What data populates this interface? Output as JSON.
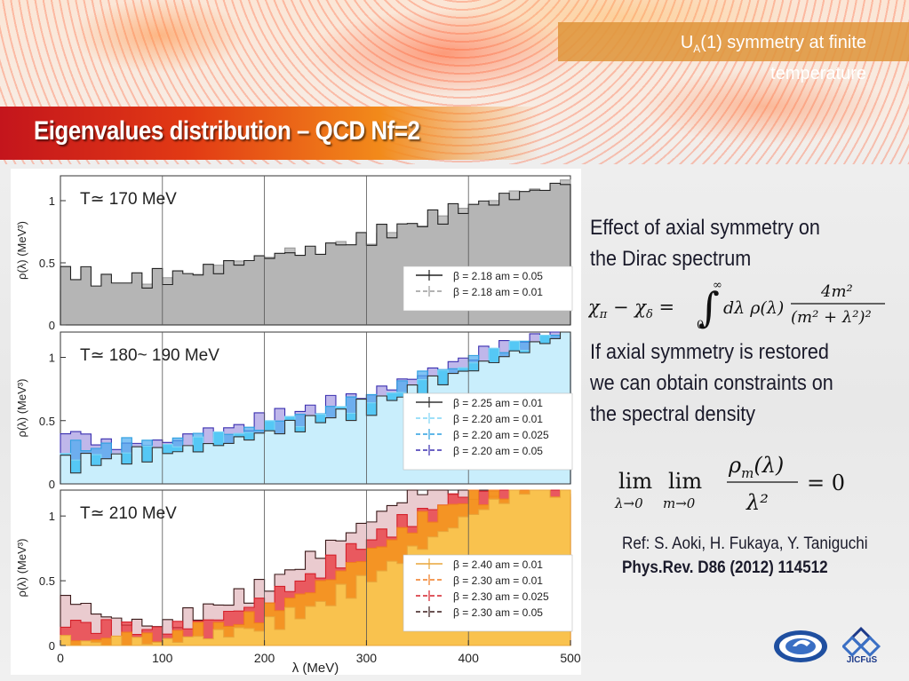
{
  "header": {
    "tag_line1": "U",
    "tag_sub": "A",
    "tag_line1_rest": "(1) symmetry at finite",
    "tag_line2": "temperature"
  },
  "title": "Eigenvalues distribution – QCD Nf=2",
  "text": {
    "p1_line1": "Effect of axial symmetry on",
    "p1_line2": "the Dirac spectrum",
    "p2_line1": "If axial symmetry is restored",
    "p2_line2": "we can obtain constraints on",
    "p2_line3": "the spectral density",
    "ref_line1": "Ref: S. Aoki, H. Fukaya, Y. Taniguchi",
    "ref_line2": "Phys.Rev. D86 (2012) 114512",
    "logo_text": "JICFuS"
  },
  "colors": {
    "title_red": "#c4151c",
    "tag_orange": "#de943a",
    "panel1_fill": "#a8a8a8",
    "panel2_fill": "#55c8f5",
    "panel3_fill": "#f9bf4a"
  },
  "chart_data": [
    {
      "type": "area",
      "panel_label": "T≃ 170 MeV",
      "xlabel": "λ (MeV)",
      "ylabel": "ρ(λ) (MeV³)",
      "xlim": [
        0,
        500
      ],
      "ylim": [
        0,
        1.2
      ],
      "x_ticks": [
        "0",
        "100",
        "200",
        "300",
        "400",
        "500"
      ],
      "y_ticks": [
        "0",
        "0.5",
        "1"
      ],
      "legend": [
        "β = 2.18 am = 0.05",
        "β = 2.18 am = 0.01"
      ],
      "series": [
        {
          "name": "β = 2.18 am = 0.05",
          "x": [
            0,
            50,
            100,
            150,
            200,
            250,
            300,
            350,
            400,
            450,
            500
          ],
          "values": [
            0.45,
            0.35,
            0.38,
            0.45,
            0.55,
            0.6,
            0.7,
            0.82,
            0.95,
            1.05,
            1.15
          ]
        },
        {
          "name": "β = 2.18 am = 0.01",
          "x": [
            0,
            50,
            100,
            150,
            200,
            250,
            300,
            350,
            400,
            450,
            500
          ],
          "values": [
            0.2,
            0.3,
            0.35,
            0.42,
            0.5,
            0.58,
            0.68,
            0.8,
            0.92,
            1.02,
            1.12
          ]
        }
      ]
    },
    {
      "type": "area",
      "panel_label": "T≃ 180~ 190 MeV",
      "xlabel": "λ (MeV)",
      "ylabel": "ρ(λ) (MeV³)",
      "xlim": [
        0,
        500
      ],
      "ylim": [
        0,
        1.2
      ],
      "x_ticks": [
        "0",
        "100",
        "200",
        "300",
        "400",
        "500"
      ],
      "y_ticks": [
        "0",
        "0.5",
        "1"
      ],
      "legend": [
        "β = 2.25 am = 0.01",
        "β = 2.20 am = 0.01",
        "β = 2.20 am = 0.025",
        "β = 2.20 am = 0.05"
      ],
      "series": [
        {
          "name": "β = 2.25 am = 0.01",
          "x": [
            0,
            50,
            100,
            150,
            200,
            250,
            300,
            350,
            400,
            450,
            500
          ],
          "values": [
            0.15,
            0.2,
            0.25,
            0.3,
            0.4,
            0.5,
            0.6,
            0.75,
            0.9,
            1.05,
            1.2
          ]
        },
        {
          "name": "β = 2.20 am = 0.01",
          "x": [
            0,
            50,
            100,
            150,
            200,
            250,
            300,
            350,
            400,
            450,
            500
          ],
          "values": [
            0.2,
            0.22,
            0.28,
            0.33,
            0.42,
            0.52,
            0.62,
            0.78,
            0.92,
            1.08,
            1.2
          ]
        },
        {
          "name": "β = 2.20 am = 0.025",
          "x": [
            0,
            50,
            100,
            150,
            200,
            250,
            300,
            350,
            400,
            450,
            500
          ],
          "values": [
            0.3,
            0.28,
            0.3,
            0.36,
            0.45,
            0.55,
            0.65,
            0.8,
            0.95,
            1.1,
            1.2
          ]
        },
        {
          "name": "β = 2.20 am = 0.05",
          "x": [
            0,
            50,
            100,
            150,
            200,
            250,
            300,
            350,
            400,
            450,
            500
          ],
          "values": [
            0.45,
            0.3,
            0.33,
            0.4,
            0.5,
            0.6,
            0.7,
            0.85,
            1.0,
            1.12,
            1.2
          ]
        }
      ]
    },
    {
      "type": "area",
      "panel_label": "T≃ 210 MeV",
      "xlabel": "λ (MeV)",
      "ylabel": "ρ(λ) (MeV³)",
      "xlim": [
        0,
        500
      ],
      "ylim": [
        0,
        1.2
      ],
      "x_ticks": [
        "0",
        "100",
        "200",
        "300",
        "400",
        "500"
      ],
      "y_ticks": [
        "0",
        "0.5",
        "1"
      ],
      "legend": [
        "β = 2.40 am = 0.01",
        "β = 2.30 am = 0.01",
        "β = 2.30 am = 0.025",
        "β = 2.30 am = 0.05"
      ],
      "series": [
        {
          "name": "β = 2.40 am = 0.01",
          "x": [
            0,
            50,
            100,
            150,
            200,
            250,
            300,
            350,
            400,
            450,
            500
          ],
          "values": [
            0.0,
            0.02,
            0.03,
            0.08,
            0.15,
            0.3,
            0.5,
            0.75,
            1.0,
            1.2,
            1.2
          ]
        },
        {
          "name": "β = 2.30 am = 0.01",
          "x": [
            0,
            50,
            100,
            150,
            200,
            250,
            300,
            350,
            400,
            450,
            500
          ],
          "values": [
            0.0,
            0.05,
            0.05,
            0.12,
            0.25,
            0.45,
            0.7,
            0.95,
            1.15,
            1.2,
            1.2
          ]
        },
        {
          "name": "β = 2.30 am = 0.025",
          "x": [
            0,
            50,
            100,
            150,
            200,
            250,
            300,
            350,
            400,
            450,
            500
          ],
          "values": [
            0.2,
            0.12,
            0.12,
            0.2,
            0.35,
            0.55,
            0.8,
            1.0,
            1.2,
            1.2,
            1.2
          ]
        },
        {
          "name": "β = 2.30 am = 0.05",
          "x": [
            0,
            50,
            100,
            150,
            200,
            250,
            300,
            350,
            400,
            450,
            500
          ],
          "values": [
            0.4,
            0.2,
            0.15,
            0.3,
            0.45,
            0.7,
            0.95,
            1.2,
            1.2,
            1.2,
            1.2
          ]
        }
      ]
    }
  ]
}
